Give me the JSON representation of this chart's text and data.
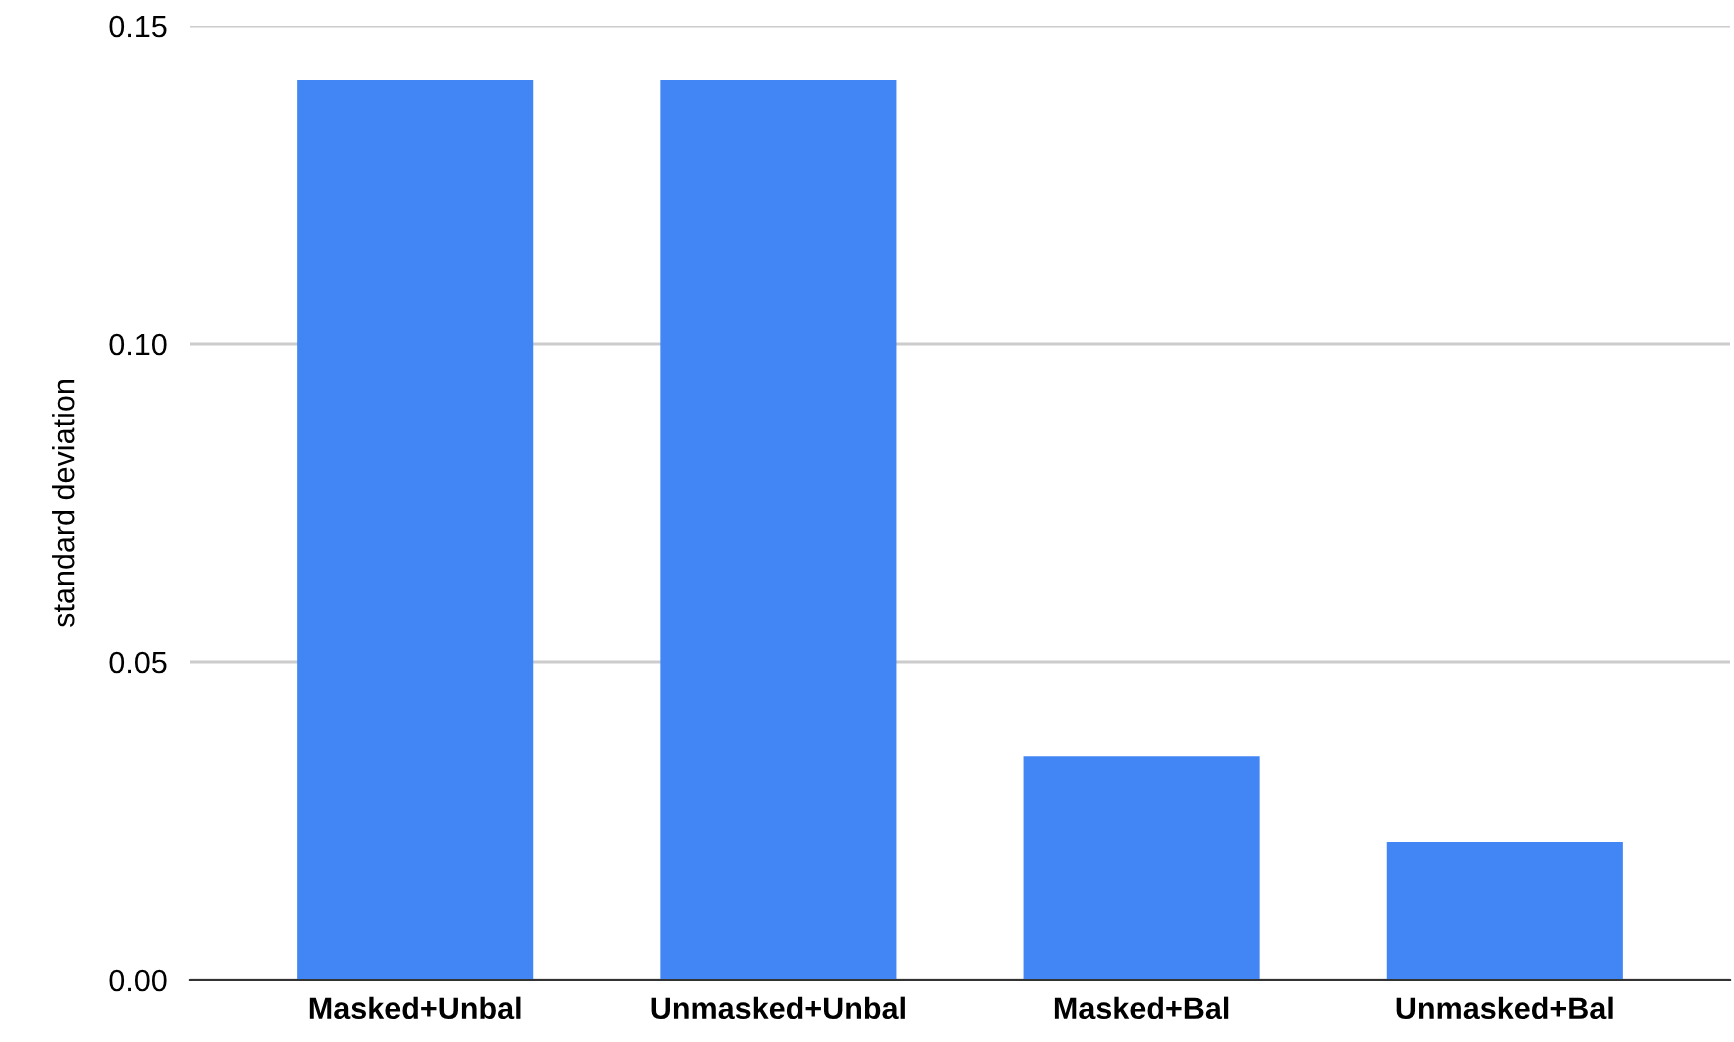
{
  "chart_data": {
    "type": "bar",
    "ylabel": "standard deviation",
    "categories": [
      "Masked+Unbal",
      "Unmasked+Unbal",
      "Masked+Bal",
      "Unmasked+Bal"
    ],
    "values": [
      0.1415,
      0.1415,
      0.0352,
      0.0217
    ],
    "color": "#4285f4",
    "ylim": [
      0,
      0.15
    ],
    "yticks": [
      {
        "value": 0,
        "label": "0.00"
      },
      {
        "value": 0.05,
        "label": "0.05"
      },
      {
        "value": 0.1,
        "label": "0.10"
      },
      {
        "value": 0.15,
        "label": "0.15"
      }
    ],
    "grid": "y"
  }
}
